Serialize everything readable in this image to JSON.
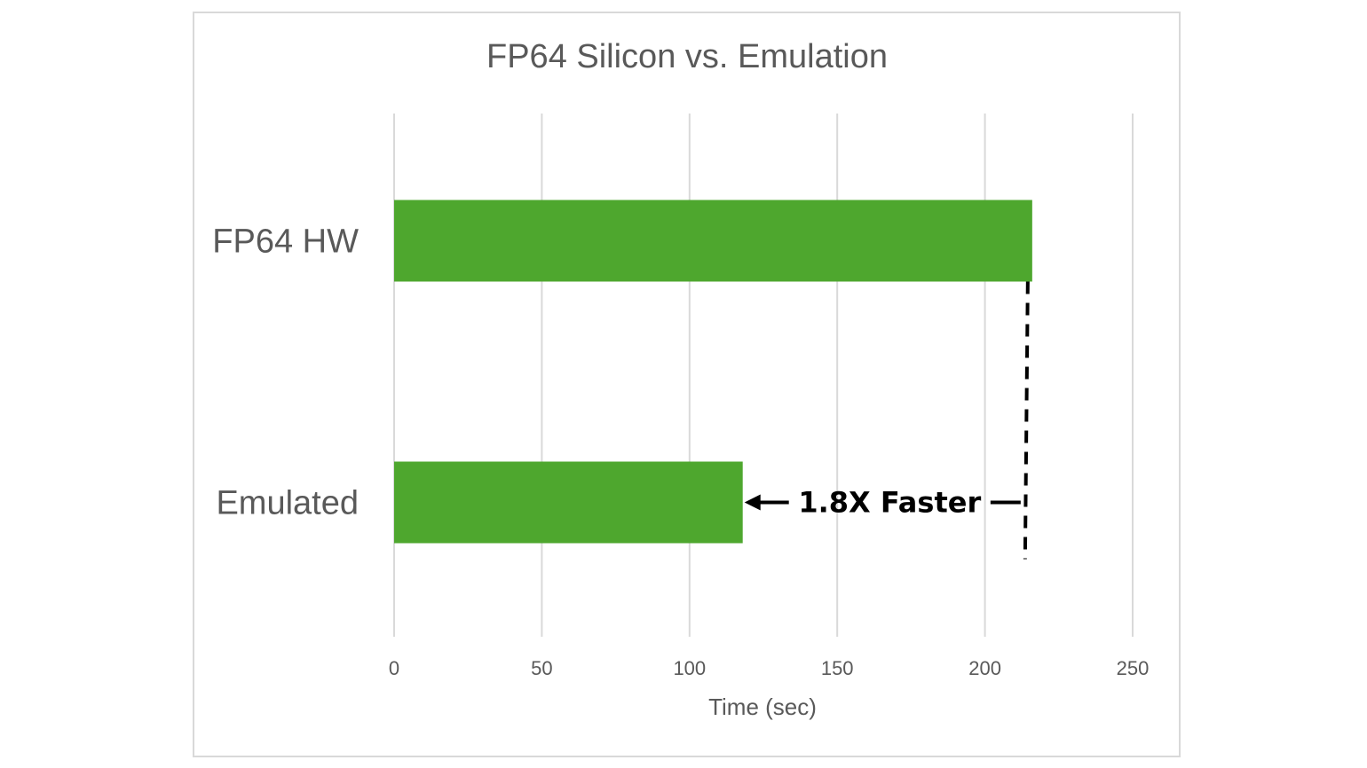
{
  "chart_data": {
    "type": "bar",
    "orientation": "horizontal",
    "title": "FP64 Silicon vs. Emulation",
    "xlabel": "Time (sec)",
    "ylabel": "",
    "categories": [
      "FP64 HW",
      "Emulated"
    ],
    "values": [
      216,
      118
    ],
    "xlim": [
      0,
      250
    ],
    "xticks": [
      "0",
      "50",
      "100",
      "150",
      "200",
      "250"
    ],
    "grid": true,
    "legend": "none",
    "bar_color": "#4ea72e",
    "annotation": {
      "text": "1.8X Faster",
      "from_value": 216,
      "to_value": 118,
      "category": "Emulated"
    }
  }
}
